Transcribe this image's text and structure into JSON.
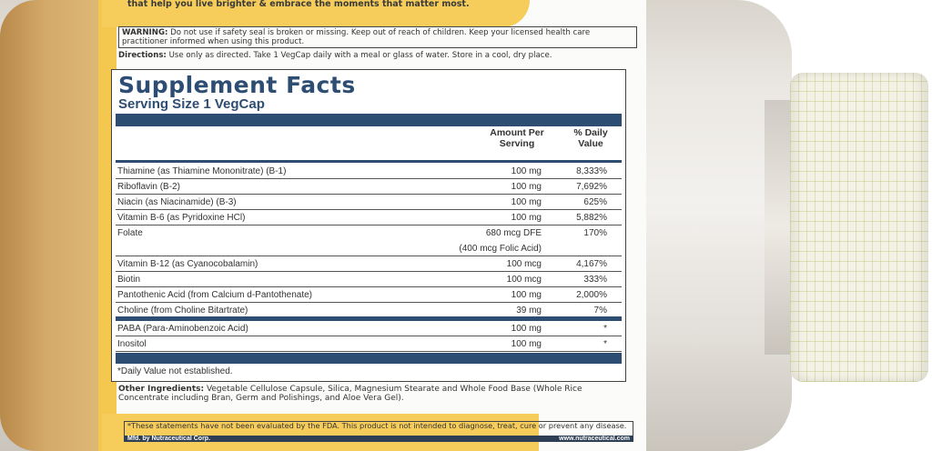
{
  "tagline": "that help you live brighter & embrace the moments that matter most.",
  "warning": {
    "label": "WARNING:",
    "text": " Do not use if safety seal is broken or missing. Keep out of reach of children. Keep your licensed health care practitioner informed when using this product."
  },
  "directions": {
    "label": "Directions:",
    "text": " Use only as directed. Take 1 VegCap daily with a meal or glass of water. Store in a cool, dry place."
  },
  "facts": {
    "title": "Supplement Facts",
    "serving": "Serving Size 1 VegCap",
    "col_amount": "Amount Per Serving",
    "col_dv": "% Daily Value",
    "rows": [
      {
        "name": "Thiamine (as Thiamine Mononitrate) (B-1)",
        "amount": "100 mg",
        "dv": "8,333%"
      },
      {
        "name": "Riboflavin (B-2)",
        "amount": "100 mg",
        "dv": "7,692%"
      },
      {
        "name": "Niacin (as Niacinamide) (B-3)",
        "amount": "100 mg",
        "dv": "625%"
      },
      {
        "name": "Vitamin B-6 (as Pyridoxine HCl)",
        "amount": "100 mg",
        "dv": "5,882%"
      },
      {
        "name": "Folate",
        "amount": "680 mcg DFE",
        "dv": "170%",
        "amount2": "(400 mcg Folic Acid)"
      },
      {
        "name": "Vitamin B-12 (as Cyanocobalamin)",
        "amount": "100 mcg",
        "dv": "4,167%"
      },
      {
        "name": "Biotin",
        "amount": "100 mcg",
        "dv": "333%"
      },
      {
        "name": "Pantothenic Acid (from Calcium d-Pantothenate)",
        "amount": "100 mg",
        "dv": "2,000%"
      },
      {
        "name": "Choline (from Choline Bitartrate)",
        "amount": "39 mg",
        "dv": "7%"
      },
      {
        "name": "PABA (Para-Aminobenzoic Acid)",
        "amount": "100 mg",
        "dv": "*"
      },
      {
        "name": "Inositol",
        "amount": "100 mg",
        "dv": "*"
      }
    ],
    "note": "*Daily Value not established."
  },
  "other": {
    "label": "Other Ingredients:",
    "text": " Vegetable Cellulose Capsule, Silica, Magnesium Stearate and Whole Food Base (Whole Rice Concentrate including Bran, Germ and Polishings, and Aloe Vera Gel)."
  },
  "fda": "*These statements have not been evaluated by the FDA. This product is not intended to diagnose, treat, cure or prevent any disease.",
  "mfd": "Mfd. by Nutraceutical Corp.",
  "website": "www.nutraceutical.com",
  "colors": {
    "label_blue": "#2e4d73",
    "label_yellow": "#f6cd5a"
  }
}
